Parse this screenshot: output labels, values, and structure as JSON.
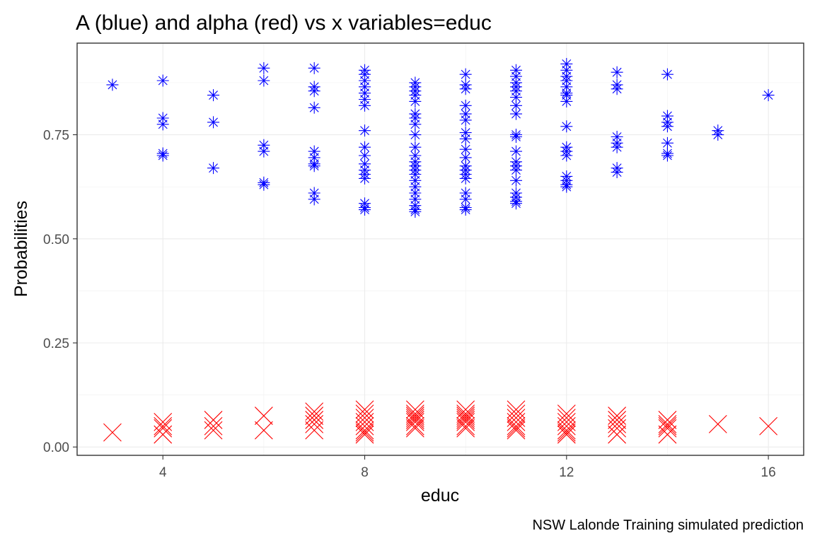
{
  "chart_data": {
    "type": "scatter",
    "title": "A (blue) and alpha (red) vs x variables=educ",
    "xlabel": "educ",
    "ylabel": "Probabilities",
    "caption": "NSW Lalonde Training simulated prediction",
    "xlim": [
      2.3,
      16.7
    ],
    "ylim": [
      -0.02,
      0.97
    ],
    "xticks": [
      {
        "value": 4,
        "label": "4"
      },
      {
        "value": 8,
        "label": "8"
      },
      {
        "value": 12,
        "label": "12"
      },
      {
        "value": 16,
        "label": "16"
      }
    ],
    "yticks": [
      {
        "value": 0.0,
        "label": "0.00"
      },
      {
        "value": 0.25,
        "label": "0.25"
      },
      {
        "value": 0.5,
        "label": "0.50"
      },
      {
        "value": 0.75,
        "label": "0.75"
      }
    ],
    "grid": true,
    "legend": "none",
    "series": [
      {
        "color": "#0000ff",
        "marker": "asterisk",
        "points": [
          {
            "x": 3,
            "y": [
              0.87
            ]
          },
          {
            "x": 4,
            "y": [
              0.88,
              0.79,
              0.775,
              0.705,
              0.7
            ]
          },
          {
            "x": 5,
            "y": [
              0.845,
              0.78,
              0.67
            ]
          },
          {
            "x": 6,
            "y": [
              0.91,
              0.88,
              0.725,
              0.71,
              0.635,
              0.63
            ]
          },
          {
            "x": 7,
            "y": [
              0.91,
              0.865,
              0.855,
              0.815,
              0.71,
              0.695,
              0.68,
              0.675,
              0.61,
              0.595
            ]
          },
          {
            "x": 8,
            "y": [
              0.905,
              0.895,
              0.88,
              0.865,
              0.85,
              0.835,
              0.82,
              0.76,
              0.72,
              0.7,
              0.68,
              0.665,
              0.655,
              0.645,
              0.585,
              0.575,
              0.57
            ]
          },
          {
            "x": 9,
            "y": [
              0.875,
              0.865,
              0.855,
              0.845,
              0.83,
              0.8,
              0.79,
              0.775,
              0.75,
              0.72,
              0.7,
              0.685,
              0.675,
              0.665,
              0.655,
              0.64,
              0.625,
              0.61,
              0.595,
              0.58,
              0.57,
              0.565
            ]
          },
          {
            "x": 10,
            "y": [
              0.895,
              0.87,
              0.86,
              0.82,
              0.8,
              0.785,
              0.755,
              0.74,
              0.715,
              0.695,
              0.675,
              0.665,
              0.655,
              0.645,
              0.61,
              0.595,
              0.575,
              0.57
            ]
          },
          {
            "x": 11,
            "y": [
              0.905,
              0.89,
              0.875,
              0.865,
              0.855,
              0.84,
              0.82,
              0.8,
              0.75,
              0.745,
              0.71,
              0.685,
              0.675,
              0.665,
              0.64,
              0.61,
              0.6,
              0.59,
              0.585
            ]
          },
          {
            "x": 12,
            "y": [
              0.92,
              0.905,
              0.89,
              0.88,
              0.865,
              0.85,
              0.845,
              0.83,
              0.77,
              0.72,
              0.71,
              0.7,
              0.65,
              0.64,
              0.63,
              0.625
            ]
          },
          {
            "x": 13,
            "y": [
              0.9,
              0.87,
              0.86,
              0.745,
              0.73,
              0.72,
              0.67,
              0.66
            ]
          },
          {
            "x": 14,
            "y": [
              0.895,
              0.795,
              0.78,
              0.77,
              0.73,
              0.705,
              0.7
            ]
          },
          {
            "x": 15,
            "y": [
              0.76,
              0.75
            ]
          },
          {
            "x": 16,
            "y": [
              0.845
            ]
          }
        ]
      },
      {
        "color": "#ff0000",
        "marker": "x",
        "points": [
          {
            "x": 3,
            "y": [
              0.035
            ]
          },
          {
            "x": 4,
            "y": [
              0.06,
              0.05,
              0.045,
              0.03
            ]
          },
          {
            "x": 5,
            "y": [
              0.065,
              0.05,
              0.04
            ]
          },
          {
            "x": 6,
            "y": [
              0.075,
              0.04
            ]
          },
          {
            "x": 7,
            "y": [
              0.085,
              0.075,
              0.065,
              0.055,
              0.04
            ]
          },
          {
            "x": 8,
            "y": [
              0.09,
              0.08,
              0.07,
              0.06,
              0.05,
              0.04,
              0.035,
              0.03
            ]
          },
          {
            "x": 9,
            "y": [
              0.09,
              0.08,
              0.075,
              0.07,
              0.065,
              0.06,
              0.05,
              0.045
            ]
          },
          {
            "x": 10,
            "y": [
              0.09,
              0.08,
              0.075,
              0.07,
              0.065,
              0.06,
              0.05,
              0.045
            ]
          },
          {
            "x": 11,
            "y": [
              0.09,
              0.08,
              0.07,
              0.06,
              0.05,
              0.045,
              0.04
            ]
          },
          {
            "x": 12,
            "y": [
              0.08,
              0.07,
              0.06,
              0.05,
              0.04,
              0.035,
              0.03
            ]
          },
          {
            "x": 13,
            "y": [
              0.075,
              0.065,
              0.055,
              0.045,
              0.03
            ]
          },
          {
            "x": 14,
            "y": [
              0.065,
              0.055,
              0.05,
              0.045,
              0.03
            ]
          },
          {
            "x": 15,
            "y": [
              0.055
            ]
          },
          {
            "x": 16,
            "y": [
              0.05
            ]
          }
        ]
      }
    ]
  }
}
